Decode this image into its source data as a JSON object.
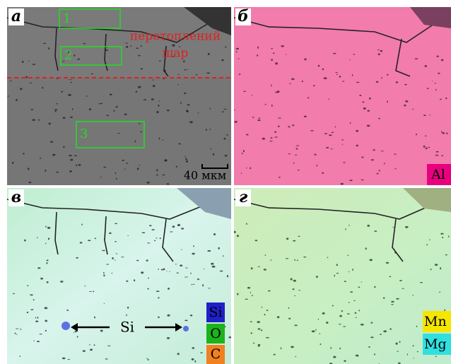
{
  "panels": [
    {
      "label": "а",
      "regions": [
        "1",
        "2",
        "3"
      ],
      "annotation": [
        "перетоплений",
        "шар"
      ],
      "scale_bar": "40 мкм"
    },
    {
      "label": "б",
      "elements": [
        "Al"
      ]
    },
    {
      "label": "в",
      "elements": [
        "Si",
        "O",
        "C"
      ],
      "annotation": "Si"
    },
    {
      "label": "г",
      "elements": [
        "Mn",
        "Mg"
      ]
    }
  ]
}
